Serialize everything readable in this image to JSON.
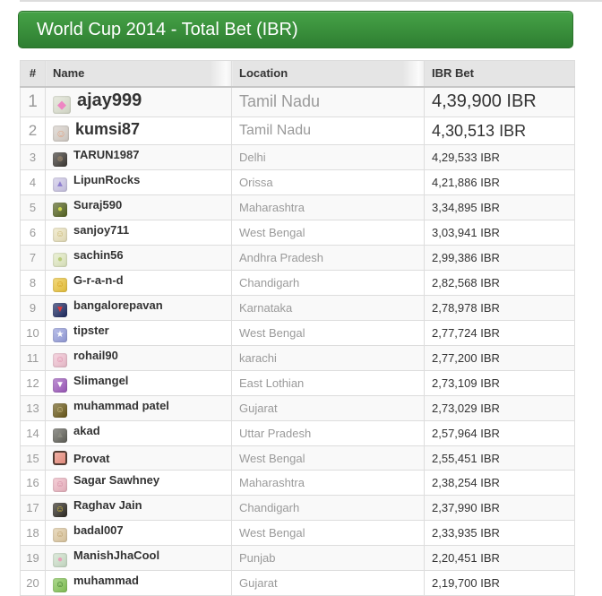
{
  "banner": {
    "title": "World Cup 2014 - Total Bet (IBR)"
  },
  "colors": {
    "banner_top": "#46a247",
    "banner_bottom": "#2e7e31",
    "banner_border": "#2a7229",
    "header_bg": "#e5e5e5",
    "cell_border": "#dddddd",
    "stripe": "#f9f9f9",
    "text_dark": "#333333",
    "text_muted": "#9a9a9a"
  },
  "table": {
    "columns": [
      "#",
      "Name",
      "Location",
      "IBR Bet"
    ],
    "rows": [
      {
        "rank": "1",
        "name": "ajay999",
        "location": "Tamil Nadu",
        "bet": "4,39,900 IBR",
        "size": "lg",
        "avatar": {
          "bg": "#dfe3d2",
          "glyph": "◆",
          "glyph_color": "#ee86c3",
          "icon": "diamond-avatar-icon"
        }
      },
      {
        "rank": "2",
        "name": "kumsi87",
        "location": "Tamil Nadu",
        "bet": "4,30,513 IBR",
        "size": "md",
        "avatar": {
          "bg": "#d9d2cb",
          "glyph": "☺",
          "glyph_color": "#e0a383",
          "icon": "face-avatar-icon"
        }
      },
      {
        "rank": "3",
        "name": "TARUN1987",
        "location": "Delhi",
        "bet": "4,29,533 IBR",
        "size": "sm",
        "avatar": {
          "bg": "#3c3833",
          "glyph": "☻",
          "glyph_color": "#8a7a66",
          "icon": "photo-avatar-icon"
        }
      },
      {
        "rank": "4",
        "name": "LipunRocks",
        "location": "Orissa",
        "bet": "4,21,886 IBR",
        "size": "sm",
        "avatar": {
          "bg": "#cfc9ea",
          "glyph": "▲",
          "glyph_color": "#8f7fd0",
          "icon": "purple-avatar-icon"
        }
      },
      {
        "rank": "5",
        "name": "Suraj590",
        "location": "Maharashtra",
        "bet": "3,34,895 IBR",
        "size": "sm",
        "avatar": {
          "bg": "#55641f",
          "glyph": "●",
          "glyph_color": "#cdd64e",
          "icon": "olive-avatar-icon"
        }
      },
      {
        "rank": "6",
        "name": "sanjoy711",
        "location": "West Bengal",
        "bet": "3,03,941 IBR",
        "size": "sm",
        "avatar": {
          "bg": "#efe7c0",
          "glyph": "☺",
          "glyph_color": "#c9b36a",
          "icon": "cream-avatar-icon"
        }
      },
      {
        "rank": "7",
        "name": "sachin56",
        "location": "Andhra Pradesh",
        "bet": "2,99,386 IBR",
        "size": "sm",
        "avatar": {
          "bg": "#e4edc4",
          "glyph": "●",
          "glyph_color": "#b9cc7a",
          "icon": "pale-green-avatar-icon"
        }
      },
      {
        "rank": "8",
        "name": "G-r-a-n-d",
        "location": "Chandigarh",
        "bet": "2,82,568 IBR",
        "size": "sm",
        "avatar": {
          "bg": "#f0c83c",
          "glyph": "☺",
          "glyph_color": "#d29a16",
          "icon": "gold-face-avatar-icon"
        }
      },
      {
        "rank": "9",
        "name": "bangalorepavan",
        "location": "Karnataka",
        "bet": "2,78,978 IBR",
        "size": "sm",
        "avatar": {
          "bg": "#1d2a63",
          "glyph": "▼",
          "glyph_color": "#e03a3a",
          "icon": "shield-avatar-icon"
        }
      },
      {
        "rank": "10",
        "name": "tipster",
        "location": "West Bengal",
        "bet": "2,77,724 IBR",
        "size": "sm",
        "avatar": {
          "bg": "#97a0e0",
          "glyph": "★",
          "glyph_color": "#ffffff",
          "icon": "star-avatar-icon"
        }
      },
      {
        "rank": "11",
        "name": "rohail90",
        "location": "karachi",
        "bet": "2,77,200 IBR",
        "size": "sm",
        "avatar": {
          "bg": "#f4c3d3",
          "glyph": "☺",
          "glyph_color": "#e088a8",
          "icon": "pink-face-avatar-icon"
        }
      },
      {
        "rank": "12",
        "name": "Slimangel",
        "location": "East Lothian",
        "bet": "2,73,109 IBR",
        "size": "sm",
        "avatar": {
          "bg": "#a05ac0",
          "glyph": "▼",
          "glyph_color": "#ffffff",
          "icon": "purple-v-avatar-icon"
        }
      },
      {
        "rank": "13",
        "name": "muhammad patel",
        "location": "Gujarat",
        "bet": "2,73,029 IBR",
        "size": "sm",
        "avatar": {
          "bg": "#6b5a18",
          "glyph": "☺",
          "glyph_color": "#d8c88a",
          "icon": "dark-gold-avatar-icon"
        }
      },
      {
        "rank": "14",
        "name": "akad",
        "location": "Uttar Pradesh",
        "bet": "2,57,964 IBR",
        "size": "sm",
        "avatar": {
          "bg": "#62625a",
          "glyph": "▲",
          "glyph_color": "#8a8a80",
          "icon": "gray-avatar-icon"
        }
      },
      {
        "rank": "15",
        "name": "Provat",
        "location": "West Bengal",
        "bet": "2,55,451 IBR",
        "size": "sm",
        "avatar": {
          "bg": "#ef8f7f",
          "border": "#513c33",
          "glyph": "",
          "glyph_color": "#ffffff",
          "icon": "framed-avatar-icon"
        }
      },
      {
        "rank": "16",
        "name": "Sagar Sawhney",
        "location": "Maharashtra",
        "bet": "2,38,254 IBR",
        "size": "sm",
        "avatar": {
          "bg": "#f2b9c6",
          "glyph": "☺",
          "glyph_color": "#d387a0",
          "icon": "pink-face-avatar-icon"
        }
      },
      {
        "rank": "17",
        "name": "Raghav Jain",
        "location": "Chandigarh",
        "bet": "2,37,990 IBR",
        "size": "sm",
        "avatar": {
          "bg": "#2e2a22",
          "glyph": "☺",
          "glyph_color": "#e3c93c",
          "icon": "yellow-face-avatar-icon"
        }
      },
      {
        "rank": "18",
        "name": "badal007",
        "location": "West Bengal",
        "bet": "2,33,935 IBR",
        "size": "sm",
        "avatar": {
          "bg": "#e3cda4",
          "glyph": "☺",
          "glyph_color": "#b99a64",
          "icon": "tan-face-avatar-icon"
        }
      },
      {
        "rank": "19",
        "name": "ManishJhaCool",
        "location": "Punjab",
        "bet": "2,20,451 IBR",
        "size": "sm",
        "avatar": {
          "bg": "#cfe3cc",
          "glyph": "●",
          "glyph_color": "#e8a0b8",
          "icon": "mint-avatar-icon"
        }
      },
      {
        "rank": "20",
        "name": "muhammad",
        "location": "Gujarat",
        "bet": "2,19,700 IBR",
        "size": "sm",
        "avatar": {
          "bg": "#86c857",
          "glyph": "☺",
          "glyph_color": "#2e6b1e",
          "icon": "green-face-avatar-icon"
        }
      }
    ]
  }
}
